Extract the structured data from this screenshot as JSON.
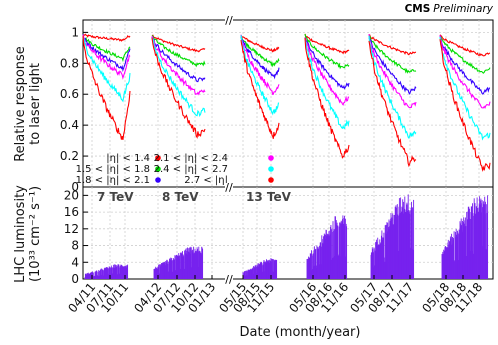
{
  "header": {
    "brand": "CMS",
    "status": "Preliminary"
  },
  "chart_data": [
    {
      "type": "line",
      "ylabel": "Relative response to laser light",
      "ylabel_lines": [
        "Relative response",
        "to laser light"
      ],
      "ylim": [
        0,
        1.08
      ],
      "yticks": [
        "0",
        "0.2",
        "0.4",
        "0.6",
        "0.8",
        "1"
      ],
      "grid": true,
      "legend": {
        "placement": "lower-left",
        "entries": [
          {
            "label": "|η| < 1.4",
            "color": "#ff0000"
          },
          {
            "label": "1.5 < |η| < 1.8",
            "color": "#00dd00"
          },
          {
            "label": "1.8 < |η| < 2.1",
            "color": "#3300ff"
          },
          {
            "label": "2.1 < |η| < 2.4",
            "color": "#ff00ff"
          },
          {
            "label": "2.4 < |η| < 2.7",
            "color": "#00ffff"
          },
          {
            "label": "2.7 < |η|",
            "color": "#ff0000"
          }
        ]
      },
      "periods": [
        {
          "x": [
            "04/11",
            "10/11"
          ],
          "end": [
            0.98,
            0.91,
            0.89,
            0.86,
            0.72,
            0.61
          ],
          "min": [
            0.95,
            0.83,
            0.77,
            0.72,
            0.57,
            0.31
          ]
        },
        {
          "x": [
            "04/12",
            "01/13"
          ],
          "end": [
            0.89,
            0.8,
            0.7,
            0.63,
            0.5,
            0.37
          ],
          "min": [
            0.88,
            0.79,
            0.69,
            0.6,
            0.47,
            0.34
          ]
        },
        {
          "x": [
            "05/15",
            "11/15"
          ],
          "end": [
            0.9,
            0.82,
            0.76,
            0.66,
            0.53,
            0.4
          ],
          "min": [
            0.88,
            0.79,
            0.71,
            0.61,
            0.48,
            0.33
          ]
        },
        {
          "x": [
            "05/16",
            "11/16"
          ],
          "end": [
            0.88,
            0.79,
            0.67,
            0.58,
            0.42,
            0.26
          ],
          "min": [
            0.87,
            0.77,
            0.64,
            0.54,
            0.38,
            0.2
          ]
        },
        {
          "x": [
            "05/17",
            "11/17"
          ],
          "end": [
            0.87,
            0.76,
            0.64,
            0.54,
            0.35,
            0.19
          ],
          "min": [
            0.86,
            0.74,
            0.61,
            0.51,
            0.33,
            0.16
          ]
        },
        {
          "x": [
            "05/18",
            "11/18"
          ],
          "end": [
            0.87,
            0.77,
            0.64,
            0.54,
            0.34,
            0.14
          ],
          "min": [
            0.85,
            0.74,
            0.61,
            0.51,
            0.32,
            0.12
          ]
        }
      ],
      "series": [
        {
          "color": "#ff0000",
          "values": [
            0.98,
            0.89,
            0.9,
            0.88,
            0.87,
            0.87
          ]
        },
        {
          "color": "#00dd00",
          "values": [
            0.91,
            0.8,
            0.82,
            0.79,
            0.76,
            0.77
          ]
        },
        {
          "color": "#3300ff",
          "values": [
            0.89,
            0.7,
            0.76,
            0.67,
            0.64,
            0.64
          ]
        },
        {
          "color": "#ff00ff",
          "values": [
            0.86,
            0.63,
            0.66,
            0.58,
            0.54,
            0.54
          ]
        },
        {
          "color": "#00ffff",
          "values": [
            0.72,
            0.5,
            0.53,
            0.42,
            0.35,
            0.34
          ]
        },
        {
          "color": "#ff0000",
          "values": [
            0.61,
            0.37,
            0.4,
            0.26,
            0.19,
            0.14
          ]
        }
      ]
    },
    {
      "type": "bar",
      "ylabel": "LHC luminosity (10^33 cm^-2 s^-1)",
      "ylabel_lines": [
        "LHC luminosity",
        "(10³³ cm⁻² s⁻¹)"
      ],
      "ylim": [
        0,
        22
      ],
      "yticks": [
        "0",
        "4",
        "8",
        "12",
        "16",
        "20"
      ],
      "grid": true,
      "color": "#7722ee",
      "energy_labels": [
        "7 TeV",
        "8 TeV",
        "13 TeV"
      ],
      "periods": [
        {
          "x": [
            "04/11",
            "10/11"
          ],
          "peak": 3.6
        },
        {
          "x": [
            "04/12",
            "12/12"
          ],
          "peak": 7.8
        },
        {
          "x": [
            "05/15",
            "11/15"
          ],
          "peak": 5.0
        },
        {
          "x": [
            "05/16",
            "10/16"
          ],
          "peak": 15.3
        },
        {
          "x": [
            "05/17",
            "11/17"
          ],
          "peak": 20.5
        },
        {
          "x": [
            "05/18",
            "11/18"
          ],
          "peak": 20.0
        }
      ]
    }
  ],
  "x_axis": {
    "label": "Date (month/year)",
    "tick_labels": [
      "04/11",
      "07/11",
      "10/11",
      "04/12",
      "07/12",
      "10/12",
      "01/13",
      "05/15",
      "08/15",
      "11/15",
      "05/16",
      "08/16",
      "11/16",
      "05/17",
      "08/17",
      "11/17",
      "05/18",
      "08/18",
      "11/18"
    ],
    "break_marker": "//"
  }
}
